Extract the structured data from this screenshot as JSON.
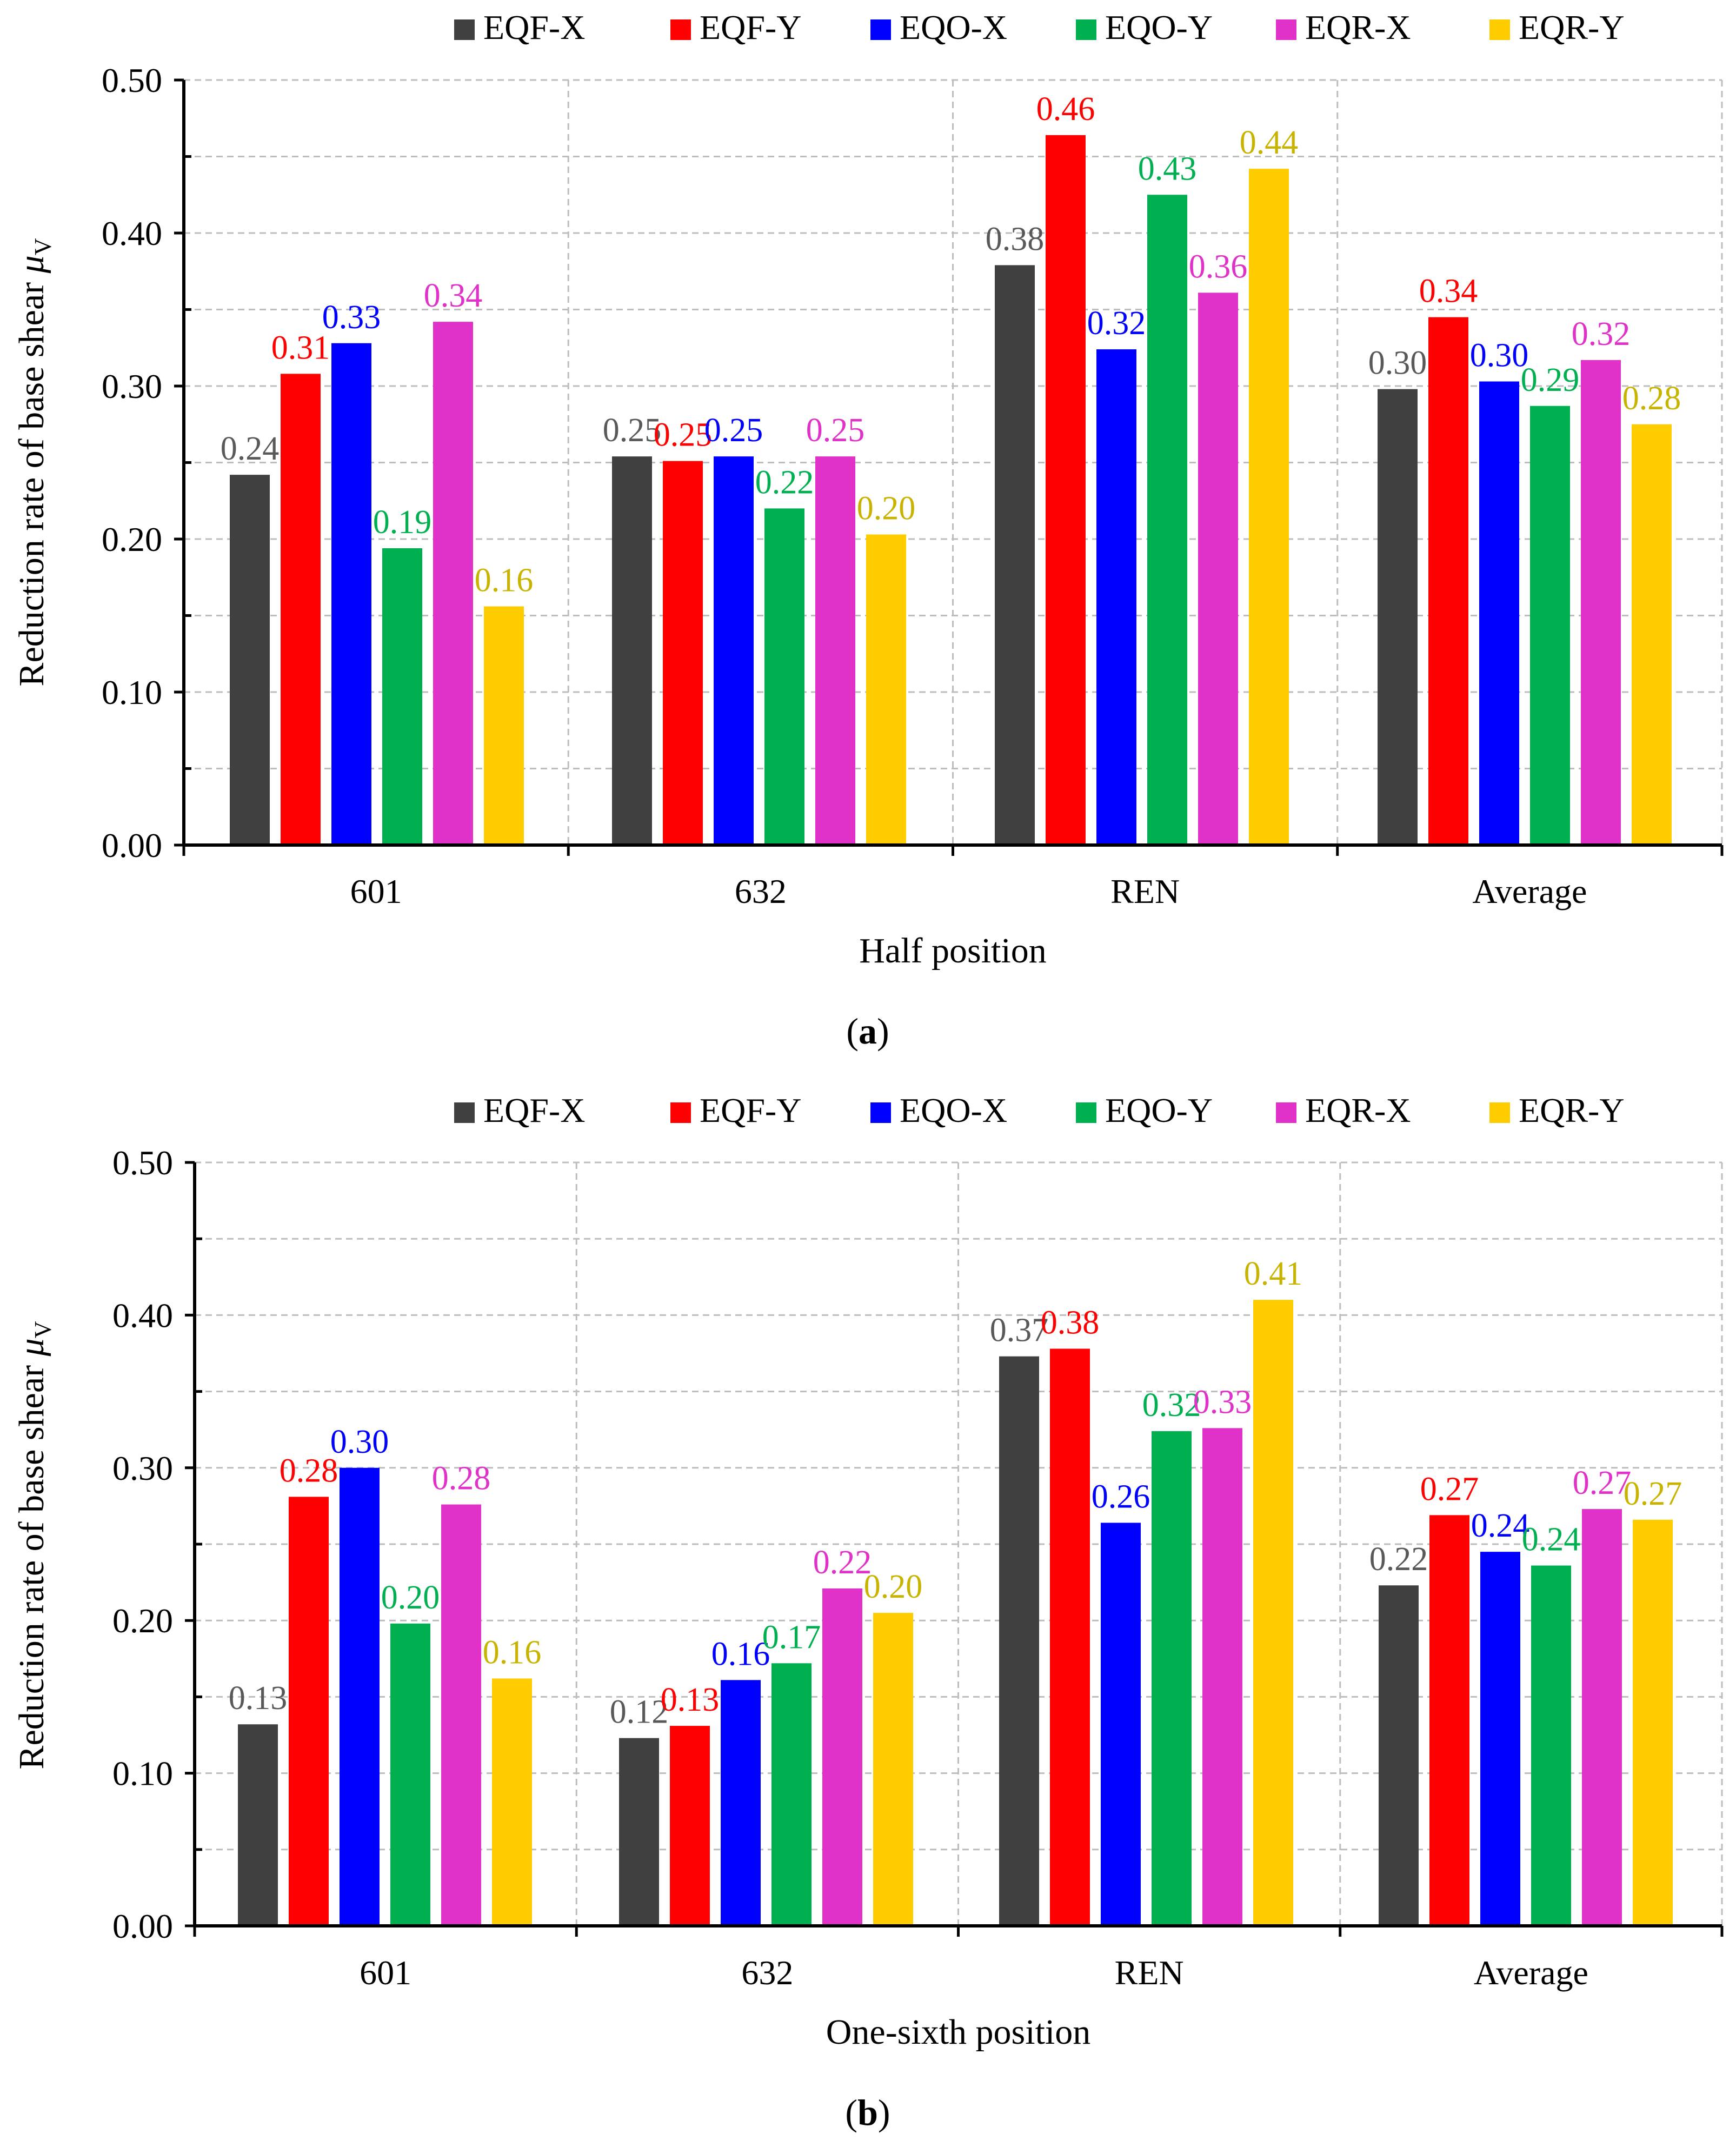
{
  "legend": {
    "series": [
      {
        "name": "EQF-X",
        "color": "#404040"
      },
      {
        "name": "EQF-Y",
        "color": "#ff0000"
      },
      {
        "name": "EQO-X",
        "color": "#0000ff"
      },
      {
        "name": "EQO-Y",
        "color": "#00b050"
      },
      {
        "name": "EQR-X",
        "color": "#e032c8"
      },
      {
        "name": "EQR-Y",
        "color": "#ffcc00"
      }
    ]
  },
  "label_colors": {
    "EQF-X": "#595959",
    "EQF-Y": "#ff0000",
    "EQO-X": "#0000ff",
    "EQO-Y": "#00b050",
    "EQR-X": "#e032c8",
    "EQR-Y": "#c8b400"
  },
  "chart_data": [
    {
      "type": "bar",
      "panel_label": "a",
      "categories": [
        "601",
        "632",
        "REN",
        "Average"
      ],
      "series": [
        {
          "name": "EQF-X",
          "values": [
            0.242,
            0.254,
            0.379,
            0.298
          ],
          "labels": [
            "0.24",
            "0.25",
            "0.38",
            "0.30"
          ]
        },
        {
          "name": "EQF-Y",
          "values": [
            0.308,
            0.251,
            0.464,
            0.345
          ],
          "labels": [
            "0.31",
            "0.25",
            "0.46",
            "0.34"
          ]
        },
        {
          "name": "EQO-X",
          "values": [
            0.328,
            0.254,
            0.324,
            0.303
          ],
          "labels": [
            "0.33",
            "0.25",
            "0.32",
            "0.30"
          ]
        },
        {
          "name": "EQO-Y",
          "values": [
            0.194,
            0.22,
            0.425,
            0.287
          ],
          "labels": [
            "0.19",
            "0.22",
            "0.43",
            "0.29"
          ]
        },
        {
          "name": "EQR-X",
          "values": [
            0.342,
            0.254,
            0.361,
            0.317
          ],
          "labels": [
            "0.34",
            "0.25",
            "0.36",
            "0.32"
          ]
        },
        {
          "name": "EQR-Y",
          "values": [
            0.156,
            0.203,
            0.442,
            0.275
          ],
          "labels": [
            "0.16",
            "0.20",
            "0.44",
            "0.28"
          ]
        }
      ],
      "xlabel": "Half position",
      "ylabel": "Reduction rate of base shear",
      "ylabel_symbol": "μ",
      "ylabel_subscript": "V",
      "ylim": [
        0,
        0.5
      ],
      "yticks": [
        "0.00",
        "0.10",
        "0.20",
        "0.30",
        "0.40",
        "0.50"
      ],
      "grid": true,
      "legend_position": "top"
    },
    {
      "type": "bar",
      "panel_label": "b",
      "categories": [
        "601",
        "632",
        "REN",
        "Average"
      ],
      "series": [
        {
          "name": "EQF-X",
          "values": [
            0.132,
            0.123,
            0.373,
            0.223
          ],
          "labels": [
            "0.13",
            "0.12",
            "0.37",
            "0.22"
          ]
        },
        {
          "name": "EQF-Y",
          "values": [
            0.281,
            0.131,
            0.378,
            0.269
          ],
          "labels": [
            "0.28",
            "0.13",
            "0.38",
            "0.27"
          ]
        },
        {
          "name": "EQO-X",
          "values": [
            0.3,
            0.161,
            0.264,
            0.245
          ],
          "labels": [
            "0.30",
            "0.16",
            "0.26",
            "0.24"
          ]
        },
        {
          "name": "EQO-Y",
          "values": [
            0.198,
            0.172,
            0.324,
            0.236
          ],
          "labels": [
            "0.20",
            "0.17",
            "0.32",
            "0.24"
          ]
        },
        {
          "name": "EQR-X",
          "values": [
            0.276,
            0.221,
            0.326,
            0.273
          ],
          "labels": [
            "0.28",
            "0.22",
            "0.33",
            "0.27"
          ]
        },
        {
          "name": "EQR-Y",
          "values": [
            0.162,
            0.205,
            0.41,
            0.266
          ],
          "labels": [
            "0.16",
            "0.20",
            "0.41",
            "0.27"
          ]
        }
      ],
      "xlabel": "One-sixth position",
      "ylabel": "Reduction rate of base shear",
      "ylabel_symbol": "μ",
      "ylabel_subscript": "V",
      "ylim": [
        0,
        0.5
      ],
      "yticks": [
        "0.00",
        "0.10",
        "0.20",
        "0.30",
        "0.40",
        "0.50"
      ],
      "grid": true,
      "legend_position": "top"
    }
  ]
}
